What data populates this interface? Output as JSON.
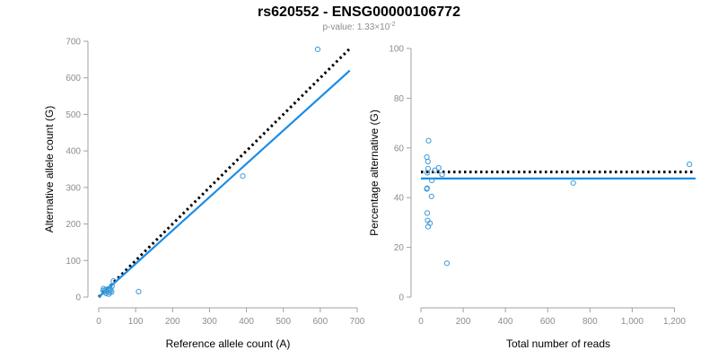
{
  "header": {
    "title": "rs620552 - ENSG00000106772",
    "pvalue_prefix": "p-value: 1.33×10",
    "pvalue_exponent": "-2"
  },
  "colors": {
    "points": "#3a9ad9",
    "fit_line": "#1a8ce6",
    "reference_line": "#000000",
    "axis": "#a0a0a0",
    "tick_label": "#8c8c8c"
  },
  "chart_data": [
    {
      "type": "scatter",
      "xlabel": "Reference allele count (A)",
      "ylabel": "Alternative allele count (G)",
      "xlim": [
        0,
        700
      ],
      "ylim": [
        0,
        700
      ],
      "xticks": [
        0,
        100,
        200,
        300,
        400,
        500,
        600,
        700
      ],
      "xtick_labels": [
        "0",
        "100",
        "200",
        "300",
        "400",
        "500",
        "600",
        "700"
      ],
      "yticks": [
        0,
        100,
        200,
        300,
        400,
        500,
        600,
        700
      ],
      "ytick_labels": [
        "0",
        "100",
        "200",
        "300",
        "400",
        "500",
        "600",
        "700"
      ],
      "grid": false,
      "points": [
        {
          "x": 593,
          "y": 678
        },
        {
          "x": 390,
          "y": 331
        },
        {
          "x": 108,
          "y": 15
        },
        {
          "x": 40,
          "y": 44
        },
        {
          "x": 36,
          "y": 30
        },
        {
          "x": 33,
          "y": 20
        },
        {
          "x": 30,
          "y": 12
        },
        {
          "x": 28,
          "y": 18
        },
        {
          "x": 25,
          "y": 22
        },
        {
          "x": 22,
          "y": 16
        },
        {
          "x": 20,
          "y": 10
        },
        {
          "x": 18,
          "y": 20
        },
        {
          "x": 15,
          "y": 14
        },
        {
          "x": 13,
          "y": 23
        },
        {
          "x": 12,
          "y": 18
        },
        {
          "x": 30,
          "y": 24
        },
        {
          "x": 35,
          "y": 14
        },
        {
          "x": 27,
          "y": 8
        }
      ],
      "lines": [
        {
          "style": "dotted",
          "x": [
            0,
            678
          ],
          "y": [
            0,
            678
          ]
        },
        {
          "style": "solid",
          "x": [
            0,
            680
          ],
          "y": [
            0,
            620
          ]
        }
      ]
    },
    {
      "type": "scatter",
      "xlabel": "Total number of reads",
      "ylabel": "Percentage alternative (G)",
      "xlim": [
        0,
        1300
      ],
      "ylim": [
        0,
        100
      ],
      "xticks": [
        0,
        200,
        400,
        600,
        800,
        1000,
        1200
      ],
      "xtick_labels": [
        "0",
        "200",
        "400",
        "600",
        "800",
        "1,000",
        "1,200"
      ],
      "yticks": [
        0,
        20,
        40,
        60,
        80,
        100
      ],
      "ytick_labels": [
        "0",
        "20",
        "40",
        "60",
        "80",
        "100"
      ],
      "grid": false,
      "points": [
        {
          "x": 1271,
          "y": 53.4
        },
        {
          "x": 721,
          "y": 45.9
        },
        {
          "x": 123,
          "y": 13.6
        },
        {
          "x": 84,
          "y": 52
        },
        {
          "x": 66,
          "y": 51
        },
        {
          "x": 50,
          "y": 40.5
        },
        {
          "x": 52,
          "y": 46.9
        },
        {
          "x": 43,
          "y": 29.7
        },
        {
          "x": 36,
          "y": 62.9
        },
        {
          "x": 34,
          "y": 51.7
        },
        {
          "x": 34,
          "y": 28.3
        },
        {
          "x": 33,
          "y": 54.5
        },
        {
          "x": 30,
          "y": 50
        },
        {
          "x": 29,
          "y": 43.8
        },
        {
          "x": 28,
          "y": 56.3
        },
        {
          "x": 28,
          "y": 43.5
        },
        {
          "x": 30,
          "y": 33.8
        },
        {
          "x": 32,
          "y": 30.8
        },
        {
          "x": 100,
          "y": 49.3
        }
      ],
      "lines": [
        {
          "style": "dotted",
          "x": [
            0,
            1300
          ],
          "y": [
            50.3,
            50.3
          ]
        },
        {
          "style": "solid",
          "x": [
            0,
            1300
          ],
          "y": [
            47.7,
            47.7
          ]
        }
      ]
    }
  ]
}
